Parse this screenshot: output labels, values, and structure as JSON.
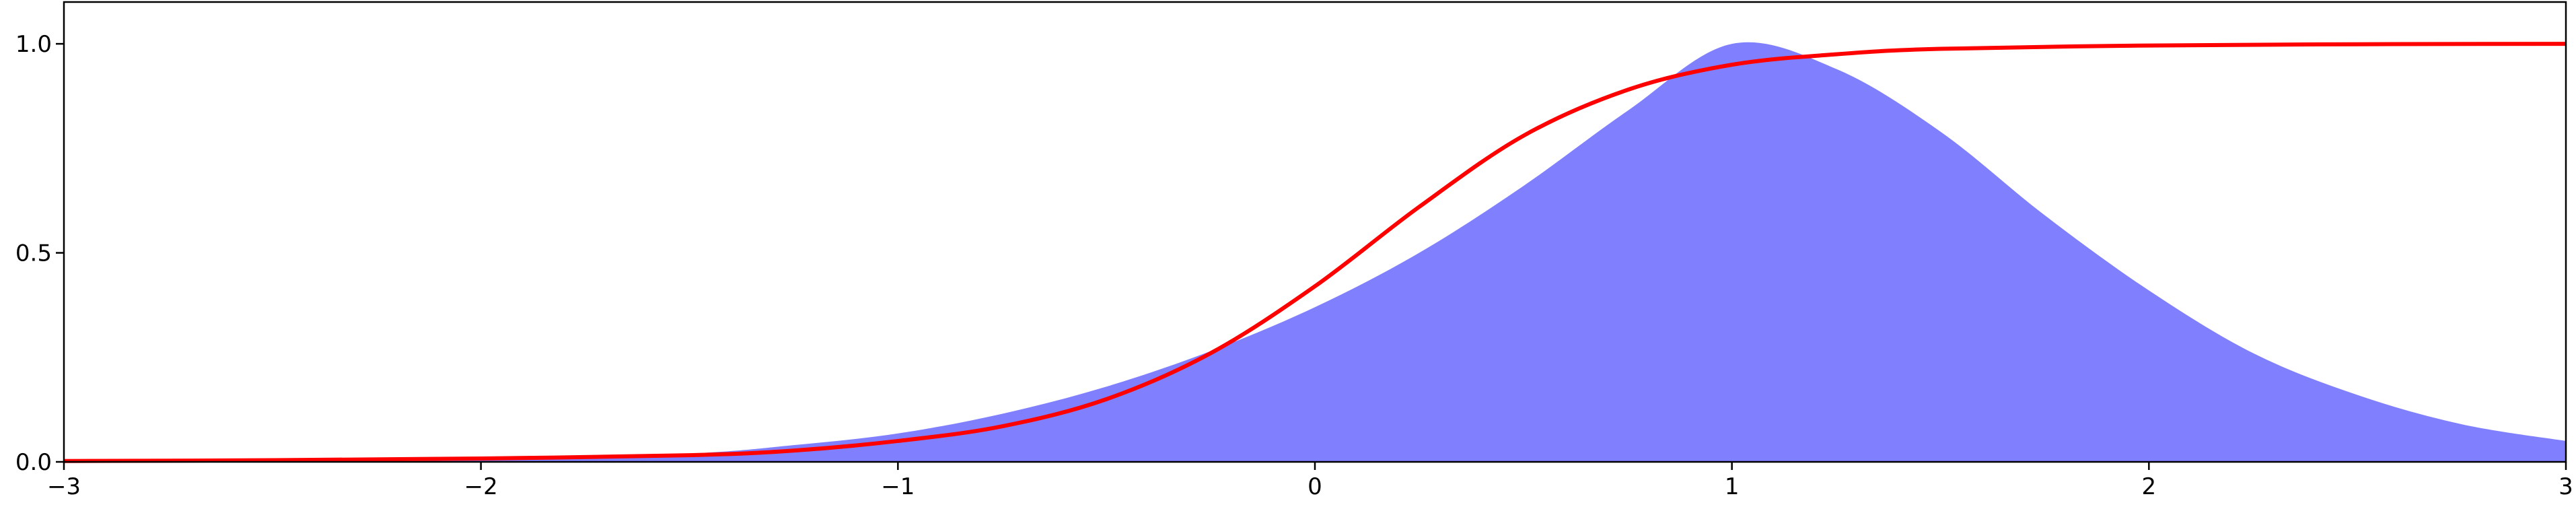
{
  "chart_data": {
    "type": "area",
    "title": "",
    "xlabel": "",
    "ylabel": "",
    "xlim": [
      -3,
      3
    ],
    "ylim": [
      0,
      1.1
    ],
    "grid": false,
    "legend": "none",
    "x_ticks": [
      -3,
      -2,
      -1,
      0,
      1,
      2,
      3
    ],
    "x_tick_labels": [
      "−3",
      "−2",
      "−1",
      "0",
      "1",
      "2",
      "3"
    ],
    "y_ticks": [
      0.0,
      0.5,
      1.0
    ],
    "y_tick_labels": [
      "0.0",
      "0.5",
      "1.0"
    ],
    "series": [
      {
        "kind": "filled-area",
        "color": "#8080ff",
        "x": [
          -3,
          -2.5,
          -2,
          -1.5,
          -1.25,
          -1,
          -0.75,
          -0.5,
          -0.25,
          0,
          0.25,
          0.5,
          0.75,
          1,
          1.25,
          1.5,
          1.75,
          2,
          2.25,
          2.5,
          2.75,
          3
        ],
        "values": [
          0.0,
          0.001,
          0.004,
          0.02,
          0.04,
          0.068,
          0.115,
          0.18,
          0.265,
          0.37,
          0.5,
          0.66,
          0.84,
          1.0,
          0.94,
          0.79,
          0.59,
          0.41,
          0.26,
          0.16,
          0.09,
          0.05
        ]
      },
      {
        "kind": "line",
        "color": "#ff0000",
        "x": [
          -3,
          -2.5,
          -2,
          -1.5,
          -1.25,
          -1,
          -0.75,
          -0.5,
          -0.25,
          0,
          0.25,
          0.5,
          0.75,
          1,
          1.25,
          1.5,
          2,
          2.5,
          3
        ],
        "values": [
          0.002,
          0.004,
          0.008,
          0.016,
          0.027,
          0.05,
          0.085,
          0.15,
          0.26,
          0.42,
          0.61,
          0.78,
          0.89,
          0.95,
          0.975,
          0.988,
          0.996,
          0.999,
          1.0
        ]
      }
    ]
  }
}
